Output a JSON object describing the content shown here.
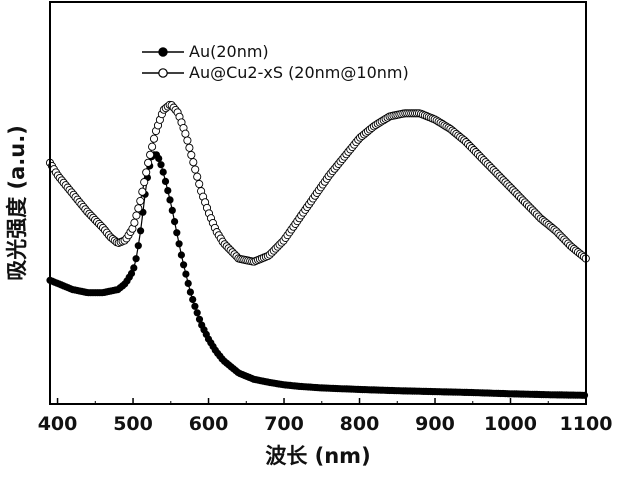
{
  "chart_data": {
    "type": "line",
    "title": "",
    "xlabel": "波长 (nm)",
    "ylabel": "吸光强度 (a.u.)",
    "xlim": [
      390,
      1100
    ],
    "ylim": [
      0,
      1.3
    ],
    "x_ticks": [
      400,
      500,
      600,
      700,
      800,
      900,
      1000,
      1100
    ],
    "y_ticks_shown": false,
    "grid": false,
    "legend_position": "top-left",
    "series": [
      {
        "name": "Au(20nm)",
        "marker": "filled-circle",
        "color": "#000000",
        "x": [
          390,
          400,
          420,
          440,
          460,
          480,
          490,
          500,
          505,
          510,
          515,
          520,
          525,
          530,
          535,
          540,
          545,
          550,
          555,
          560,
          565,
          570,
          575,
          580,
          590,
          600,
          610,
          620,
          630,
          640,
          650,
          660,
          670,
          680,
          700,
          720,
          750,
          800,
          850,
          900,
          950,
          1000,
          1050,
          1100
        ],
        "y": [
          0.4,
          0.39,
          0.37,
          0.36,
          0.36,
          0.37,
          0.39,
          0.43,
          0.48,
          0.56,
          0.66,
          0.75,
          0.8,
          0.81,
          0.79,
          0.75,
          0.7,
          0.65,
          0.59,
          0.53,
          0.47,
          0.42,
          0.37,
          0.33,
          0.26,
          0.21,
          0.17,
          0.14,
          0.12,
          0.1,
          0.09,
          0.08,
          0.075,
          0.07,
          0.062,
          0.057,
          0.052,
          0.047,
          0.043,
          0.04,
          0.037,
          0.033,
          0.03,
          0.028
        ]
      },
      {
        "name": "Au@Cu2-xS (20nm@10nm)",
        "marker": "open-circle",
        "color": "#000000",
        "x": [
          390,
          400,
          420,
          440,
          460,
          470,
          480,
          490,
          500,
          510,
          520,
          530,
          540,
          550,
          560,
          570,
          580,
          590,
          600,
          610,
          620,
          640,
          660,
          680,
          700,
          720,
          740,
          760,
          780,
          800,
          820,
          840,
          860,
          880,
          900,
          920,
          940,
          960,
          980,
          1000,
          1020,
          1040,
          1060,
          1080,
          1100
        ],
        "y": [
          0.78,
          0.74,
          0.68,
          0.62,
          0.57,
          0.54,
          0.52,
          0.53,
          0.57,
          0.66,
          0.78,
          0.88,
          0.95,
          0.97,
          0.94,
          0.87,
          0.78,
          0.69,
          0.62,
          0.56,
          0.52,
          0.47,
          0.46,
          0.48,
          0.53,
          0.6,
          0.67,
          0.74,
          0.8,
          0.86,
          0.9,
          0.93,
          0.94,
          0.94,
          0.92,
          0.89,
          0.85,
          0.8,
          0.75,
          0.7,
          0.65,
          0.6,
          0.56,
          0.51,
          0.47
        ]
      }
    ]
  }
}
